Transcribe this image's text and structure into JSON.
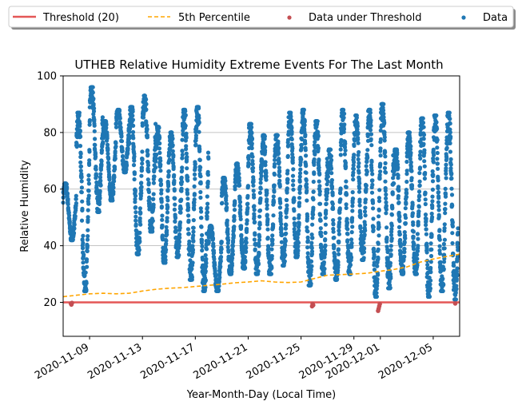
{
  "chart_data": {
    "type": "scatter",
    "title": "UTHEB Relative Humidity Extreme Events For The Last Month",
    "xlabel": "Year-Month-Day (Local Time)",
    "ylabel": "Relative Humidity",
    "x_range": [
      "2020-11-07",
      "2020-12-07"
    ],
    "ylim": [
      8,
      100
    ],
    "y_ticks": [
      20,
      40,
      60,
      80,
      100
    ],
    "x_ticks": [
      "2020-11-09",
      "2020-11-13",
      "2020-11-17",
      "2020-11-21",
      "2020-11-25",
      "2020-11-29",
      "2020-12-01",
      "2020-12-05"
    ],
    "grid": "horizontal",
    "legend_placement": "top (outside plot area)",
    "legend": [
      "Threshold (20)",
      "5th Percentile",
      "Data under Threshold",
      "Data"
    ],
    "threshold": {
      "name": "Threshold (20)",
      "value": 20,
      "color": "#e45756"
    },
    "percentile": {
      "name": "5th Percentile",
      "color": "#ffa500",
      "points": [
        [
          "2020-11-07",
          22
        ],
        [
          "2020-11-08",
          22.5
        ],
        [
          "2020-11-09",
          23
        ],
        [
          "2020-11-10",
          23.2
        ],
        [
          "2020-11-11",
          23
        ],
        [
          "2020-11-12",
          23.2
        ],
        [
          "2020-11-13",
          24
        ],
        [
          "2020-11-14",
          24.6
        ],
        [
          "2020-11-15",
          25
        ],
        [
          "2020-11-16",
          25.2
        ],
        [
          "2020-11-17",
          25.6
        ],
        [
          "2020-11-18",
          26
        ],
        [
          "2020-11-19",
          26.4
        ],
        [
          "2020-11-20",
          26.9
        ],
        [
          "2020-11-21",
          27.2
        ],
        [
          "2020-11-22",
          27.6
        ],
        [
          "2020-11-23",
          27.2
        ],
        [
          "2020-11-24",
          27
        ],
        [
          "2020-11-25",
          27.2
        ],
        [
          "2020-11-26",
          28.4
        ],
        [
          "2020-11-27",
          29.6
        ],
        [
          "2020-11-28",
          29.8
        ],
        [
          "2020-11-29",
          30
        ],
        [
          "2020-11-30",
          30.3
        ],
        [
          "2020-12-01",
          31
        ],
        [
          "2020-12-02",
          31.6
        ],
        [
          "2020-12-03",
          32.5
        ],
        [
          "2020-12-04",
          34.2
        ],
        [
          "2020-12-05",
          35.3
        ],
        [
          "2020-12-06",
          36.2
        ],
        [
          "2020-12-07",
          37
        ]
      ]
    },
    "data_under_threshold": {
      "name": "Data under Threshold",
      "color": "#c44e52",
      "points": [
        [
          "2020-11-07 14:00",
          19.6
        ],
        [
          "2020-11-07 15:00",
          19.2
        ],
        [
          "2020-11-07 16:00",
          19.8
        ],
        [
          "2020-11-25 20:00",
          18.6
        ],
        [
          "2020-11-25 21:00",
          19.4
        ],
        [
          "2020-11-25 22:00",
          19.0
        ],
        [
          "2020-11-30 20:00",
          17.0
        ],
        [
          "2020-11-30 21:00",
          17.8
        ],
        [
          "2020-11-30 22:00",
          18.6
        ],
        [
          "2020-11-30 23:00",
          19.4
        ],
        [
          "2020-12-06 16:00",
          19.6
        ]
      ]
    },
    "data": {
      "name": "Data",
      "color": "#1f77b4",
      "daily_range": [
        [
          "2020-11-07",
          42,
          62
        ],
        [
          "2020-11-08",
          24,
          87
        ],
        [
          "2020-11-09",
          52,
          96
        ],
        [
          "2020-11-10",
          56,
          84
        ],
        [
          "2020-11-11",
          66,
          88
        ],
        [
          "2020-11-12",
          37,
          89
        ],
        [
          "2020-11-13",
          45,
          93
        ],
        [
          "2020-11-14",
          34,
          82
        ],
        [
          "2020-11-15",
          36,
          80
        ],
        [
          "2020-11-16",
          28,
          88
        ],
        [
          "2020-11-17",
          24,
          89
        ],
        [
          "2020-11-18",
          24,
          47
        ],
        [
          "2020-11-19",
          30,
          64
        ],
        [
          "2020-11-20",
          32,
          69
        ],
        [
          "2020-11-21",
          30,
          83
        ],
        [
          "2020-11-22",
          30,
          79
        ],
        [
          "2020-11-23",
          33,
          79
        ],
        [
          "2020-11-24",
          36,
          87
        ],
        [
          "2020-11-25",
          26,
          88
        ],
        [
          "2020-11-26",
          30,
          84
        ],
        [
          "2020-11-27",
          28,
          74
        ],
        [
          "2020-11-28",
          30,
          88
        ],
        [
          "2020-11-29",
          35,
          86
        ],
        [
          "2020-11-30",
          22,
          88
        ],
        [
          "2020-12-01",
          25,
          90
        ],
        [
          "2020-12-02",
          30,
          74
        ],
        [
          "2020-12-03",
          30,
          80
        ],
        [
          "2020-12-04",
          22,
          85
        ],
        [
          "2020-12-05",
          24,
          86
        ],
        [
          "2020-12-06",
          21,
          87
        ],
        [
          "2020-12-07",
          45,
          62
        ]
      ]
    }
  }
}
